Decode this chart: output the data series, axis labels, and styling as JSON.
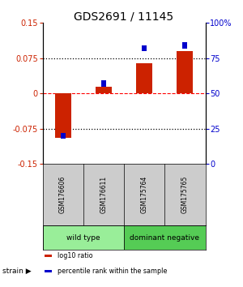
{
  "title": "GDS2691 / 11145",
  "samples": [
    "GSM176606",
    "GSM176611",
    "GSM175764",
    "GSM175765"
  ],
  "log10_ratio": [
    -0.095,
    0.015,
    0.065,
    0.09
  ],
  "percentile_rank": [
    20,
    57,
    82,
    84
  ],
  "ylim_left": [
    -0.15,
    0.15
  ],
  "ylim_right": [
    0,
    100
  ],
  "yticks_left": [
    -0.15,
    -0.075,
    0,
    0.075,
    0.15
  ],
  "ytick_labels_left": [
    "-0.15",
    "-0.075",
    "0",
    "0.075",
    "0.15"
  ],
  "yticks_right": [
    0,
    25,
    50,
    75,
    100
  ],
  "ytick_labels_right": [
    "0",
    "25",
    "50",
    "75",
    "100%"
  ],
  "hlines": [
    0.075,
    0,
    -0.075
  ],
  "hline_colors": [
    "black",
    "red",
    "black"
  ],
  "hline_styles": [
    "dotted",
    "dashed",
    "dotted"
  ],
  "bar_color": "#cc2200",
  "rank_color": "#0000cc",
  "groups": [
    {
      "label": "wild type",
      "color": "#99ee99"
    },
    {
      "label": "dominant negative",
      "color": "#55cc55"
    }
  ],
  "group_ranges": [
    [
      -0.5,
      1.5
    ],
    [
      1.5,
      3.5
    ]
  ],
  "strain_label": "strain",
  "legend_items": [
    {
      "color": "#cc2200",
      "label": "log10 ratio"
    },
    {
      "color": "#0000cc",
      "label": "percentile rank within the sample"
    }
  ],
  "bar_width": 0.4,
  "rank_bar_width": 0.12,
  "rank_bar_height": 0.013,
  "left_tick_color": "#cc2200",
  "right_tick_color": "#0000cc",
  "title_fontsize": 10,
  "tick_fontsize": 7,
  "sample_fontsize": 5.5,
  "group_fontsize": 6.5,
  "legend_fontsize": 5.8,
  "strain_fontsize": 6.5
}
